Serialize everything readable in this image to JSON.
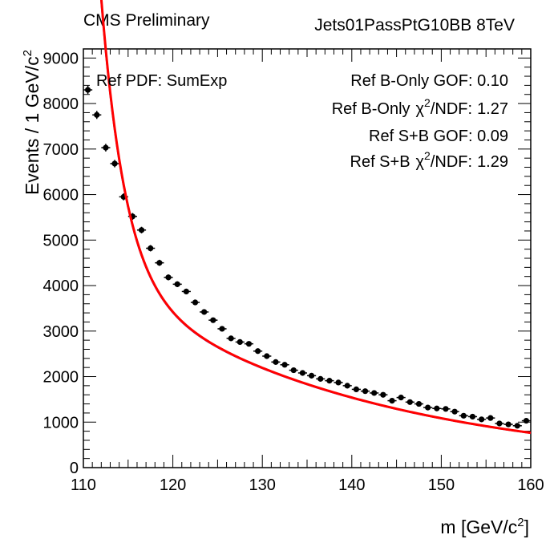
{
  "header": {
    "left": "CMS Preliminary",
    "right": "Jets01PassPtG10BB 8TeV"
  },
  "chart_data": {
    "type": "scatter",
    "xlabel": "m [GeV/c",
    "xlabel_sup": "2",
    "xlabel_end": "]",
    "ylabel": "Events / 1 GeV/c",
    "ylabel_sup": "2",
    "xlim": [
      110,
      160
    ],
    "ylim": [
      0,
      9200
    ],
    "x_ticks": [
      110,
      120,
      130,
      140,
      150,
      160
    ],
    "y_ticks": [
      0,
      1000,
      2000,
      3000,
      4000,
      5000,
      6000,
      7000,
      8000,
      9000
    ],
    "annotations": {
      "pdf": "Ref PDF: SumExp",
      "b_gof": "Ref B-Only GOF: 0.10",
      "b_chi_prefix": "Ref B-Only",
      "chi_symbol": "χ",
      "chi_sup": "2",
      "chi_suffix": "/NDF:",
      "b_chi_value": "1.27",
      "sb_gof": "Ref S+B GOF: 0.09",
      "sb_chi_prefix": "Ref S+B",
      "sb_chi_value": "1.29"
    },
    "colors": {
      "data": "#000000",
      "fit_sb": "#ff0000",
      "fit_b": "#4b2ec8"
    },
    "series": [
      {
        "kind": "data_points",
        "x": [
          110.5,
          111.5,
          112.5,
          113.5,
          114.5,
          115.5,
          116.5,
          117.5,
          118.5,
          119.5,
          120.5,
          121.5,
          122.5,
          123.5,
          124.5,
          125.5,
          126.5,
          127.5,
          128.5,
          129.5,
          130.5,
          131.5,
          132.5,
          133.5,
          134.5,
          135.5,
          136.5,
          137.5,
          138.5,
          139.5,
          140.5,
          141.5,
          142.5,
          143.5,
          144.5,
          145.5,
          146.5,
          147.5,
          148.5,
          149.5,
          150.5,
          151.5,
          152.5,
          153.5,
          154.5,
          155.5,
          156.5,
          157.5,
          158.5,
          159.5
        ],
        "y": [
          8300,
          7750,
          7030,
          6680,
          5950,
          5520,
          5220,
          4820,
          4500,
          4180,
          4030,
          3870,
          3630,
          3420,
          3240,
          3050,
          2840,
          2760,
          2720,
          2560,
          2450,
          2320,
          2260,
          2140,
          2080,
          2020,
          1950,
          1910,
          1870,
          1800,
          1720,
          1680,
          1640,
          1600,
          1470,
          1540,
          1440,
          1400,
          1320,
          1300,
          1290,
          1230,
          1140,
          1120,
          1060,
          1090,
          970,
          950,
          920,
          1030
        ]
      },
      {
        "kind": "fit_curve",
        "params": {
          "a1": 13000,
          "b1": 0.37,
          "a2": 4400,
          "b2": 0.035
        }
      }
    ]
  }
}
